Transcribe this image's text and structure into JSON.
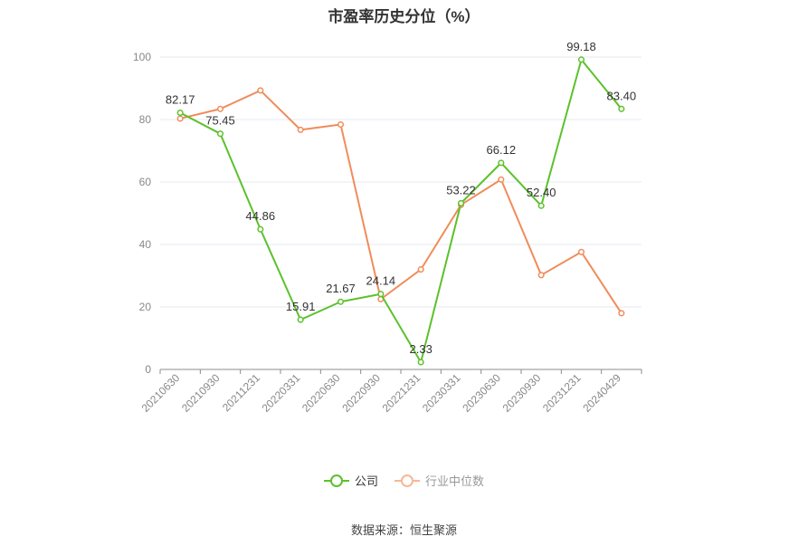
{
  "chart_data": {
    "type": "line",
    "title": "市盈率历史分位（%）",
    "categories": [
      "20210630",
      "20210930",
      "20211231",
      "20220331",
      "20220630",
      "20220930",
      "20221231",
      "20230331",
      "20230630",
      "20230930",
      "20231231",
      "20240429"
    ],
    "ylim": [
      0,
      100
    ],
    "yticks": [
      0,
      20,
      40,
      60,
      80,
      100
    ],
    "grid": true,
    "legend_position": "bottom",
    "series": [
      {
        "name": "公司",
        "color": "#5cc12c",
        "show_labels": true,
        "values": [
          82.17,
          75.45,
          44.86,
          15.91,
          21.67,
          24.14,
          2.33,
          53.22,
          66.12,
          52.4,
          99.18,
          83.4
        ]
      },
      {
        "name": "行业中位数",
        "color": "#f08c5a",
        "show_labels": false,
        "values": [
          80.3,
          83.4,
          89.3,
          76.7,
          78.4,
          22.5,
          32.0,
          52.7,
          60.8,
          30.2,
          37.6,
          18.0
        ]
      }
    ]
  },
  "legend": {
    "company": "公司",
    "industry": "行业中位数"
  },
  "source": "数据来源：恒生聚源"
}
